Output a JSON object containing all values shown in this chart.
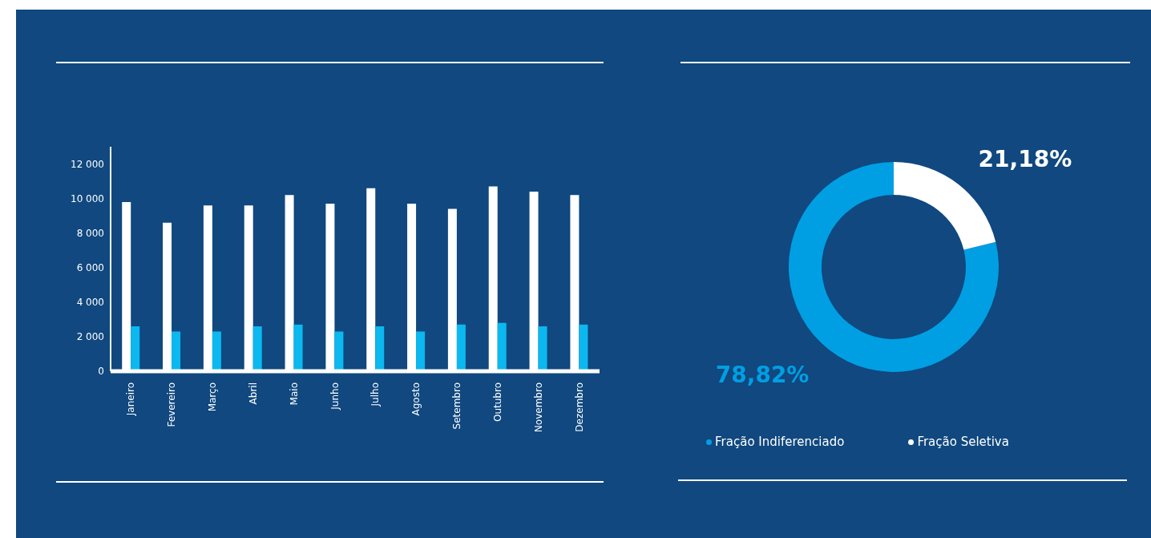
{
  "chart_data": [
    {
      "type": "bar",
      "categories": [
        "Janeiro",
        "Fevereiro",
        "Março",
        "Abril",
        "Maio",
        "Junho",
        "Julho",
        "Agosto",
        "Setembro",
        "Outubro",
        "Novembro",
        "Dezembro"
      ],
      "series": [
        {
          "color": "#ffffff",
          "values": [
            9800,
            8600,
            9600,
            9600,
            10200,
            9700,
            10600,
            9700,
            9400,
            10700,
            10400,
            10200
          ]
        },
        {
          "color": "#0bb8ef",
          "values": [
            2600,
            2300,
            2300,
            2600,
            2700,
            2300,
            2600,
            2300,
            2700,
            2800,
            2600,
            2700
          ]
        }
      ],
      "ylim": [
        0,
        13000
      ],
      "yticks": [
        {
          "value": 0,
          "label": "0"
        },
        {
          "value": 2000,
          "label": "2 000"
        },
        {
          "value": 4000,
          "label": "4 000"
        },
        {
          "value": 6000,
          "label": "6 000"
        },
        {
          "value": 8000,
          "label": "8 000"
        },
        {
          "value": 10000,
          "label": "10 000"
        },
        {
          "value": 12000,
          "label": "12 000"
        }
      ],
      "grid": false,
      "legend": false
    },
    {
      "type": "donut",
      "categories": [
        "Fração Indiferenciado",
        "Fração Seletiva"
      ],
      "values": [
        78.82,
        21.18
      ],
      "colors": [
        "#009fe3",
        "#ffffff"
      ],
      "value_labels": [
        "78,82%",
        "21,18%"
      ],
      "legend": "bottom"
    }
  ]
}
